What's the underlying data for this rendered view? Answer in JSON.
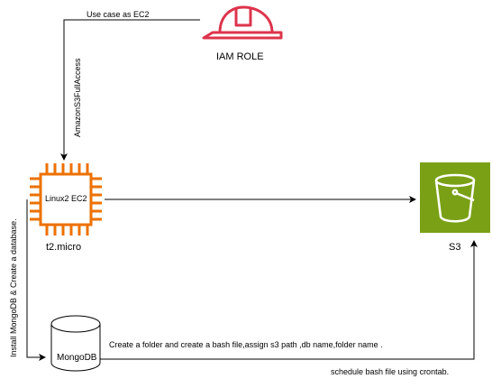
{
  "iam": {
    "label": "IAM ROLE",
    "icon": "hard-hat-icon",
    "color": "#dd344c"
  },
  "ec2": {
    "chip_label": "Linux2 EC2",
    "instance_type": "t2.micro",
    "icon": "chip-icon",
    "color": "#ed7100"
  },
  "s3": {
    "label": "S3",
    "icon": "bucket-icon",
    "color": "#7aa116"
  },
  "mongodb": {
    "label": "MongoDB",
    "icon": "database-cylinder-icon"
  },
  "edges": {
    "iam_to_ec2_top": "Use case as EC2",
    "iam_to_ec2_side": "AmazonS3FullAccess",
    "ec2_to_mongodb": "Install MongoDB & Create a database.",
    "mongodb_action": "Create a folder and create a bash file,assign s3 path ,db name,folder name .",
    "mongodb_to_s3": "schedule bash file using crontab."
  }
}
